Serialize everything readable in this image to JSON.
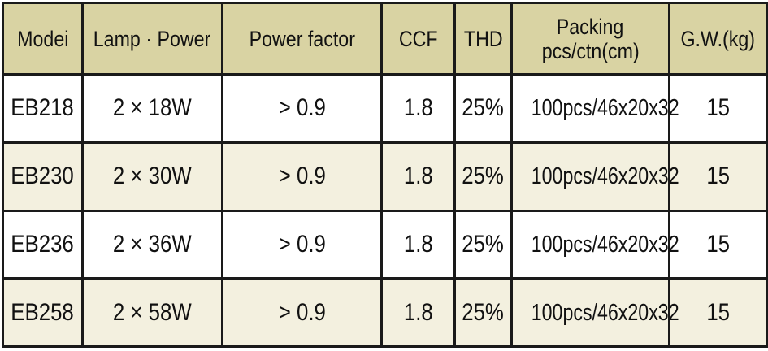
{
  "table": {
    "headers": {
      "model": "Modei",
      "lamp_power": "Lamp · Power",
      "power_factor": "Power factor",
      "ccf": "CCF",
      "thd": "THD",
      "packing_line1": "Packing",
      "packing_line2": "pcs/ctn(cm)",
      "gw": "G.W.(kg)"
    },
    "rows": [
      {
        "model": "EB218",
        "lamp_power": "2 × 18W",
        "power_factor": "> 0.9",
        "ccf": "1.8",
        "thd": "25%",
        "packing": "100pcs/46x20x32",
        "gw": "15"
      },
      {
        "model": "EB230",
        "lamp_power": "2 × 30W",
        "power_factor": "> 0.9",
        "ccf": "1.8",
        "thd": "25%",
        "packing": "100pcs/46x20x32",
        "gw": "15"
      },
      {
        "model": "EB236",
        "lamp_power": "2 × 36W",
        "power_factor": "> 0.9",
        "ccf": "1.8",
        "thd": "25%",
        "packing": "100pcs/46x20x32",
        "gw": "15"
      },
      {
        "model": "EB258",
        "lamp_power": "2 × 58W",
        "power_factor": "> 0.9",
        "ccf": "1.8",
        "thd": "25%",
        "packing": "100pcs/46x20x32",
        "gw": "15"
      }
    ],
    "colors": {
      "header_bg": "#d9d3a3",
      "row_alt_bg": "#f3f0df",
      "border": "#1a1a1a"
    }
  }
}
